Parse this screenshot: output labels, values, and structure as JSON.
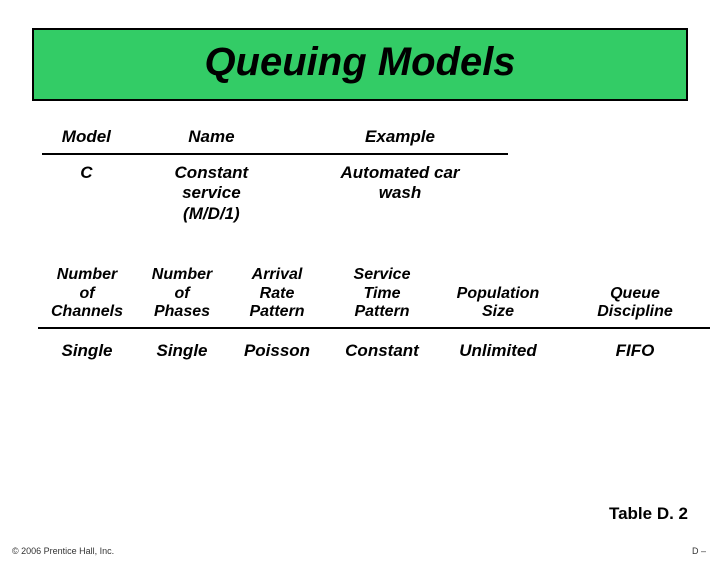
{
  "title": {
    "text": "Queuing Models",
    "bg_color": "#33cc66",
    "border_color": "#000000",
    "text_color": "#000000",
    "fontsize": 40
  },
  "upper": {
    "headers": {
      "model": "Model",
      "name": "Name",
      "example": "Example"
    },
    "row": {
      "model": "C",
      "name_line1": "Constant",
      "name_line2": "service",
      "name_line3": "(M/D/1)",
      "ex_line1": "Automated car",
      "ex_line2": "wash"
    }
  },
  "lower": {
    "headers": {
      "channels_l1": "Number",
      "channels_l2": "of",
      "channels_l3": "Channels",
      "phases_l1": "Number",
      "phases_l2": "of",
      "phases_l3": "Phases",
      "arrival_l1": "Arrival",
      "arrival_l2": "Rate",
      "arrival_l3": "Pattern",
      "service_l1": "Service",
      "service_l2": "Time",
      "service_l3": "Pattern",
      "pop_l1": "Population",
      "pop_l2": "Size",
      "queue_l1": "Queue",
      "queue_l2": "Discipline"
    },
    "row": {
      "channels": "Single",
      "phases": "Single",
      "arrival": "Poisson",
      "service": "Constant",
      "population": "Unlimited",
      "queue": "FIFO"
    }
  },
  "table_label": "Table D. 2",
  "copyright": "© 2006 Prentice Hall, Inc.",
  "page_num": "D –",
  "colors": {
    "background": "#ffffff",
    "text": "#000000",
    "fine_print": "#333333"
  }
}
